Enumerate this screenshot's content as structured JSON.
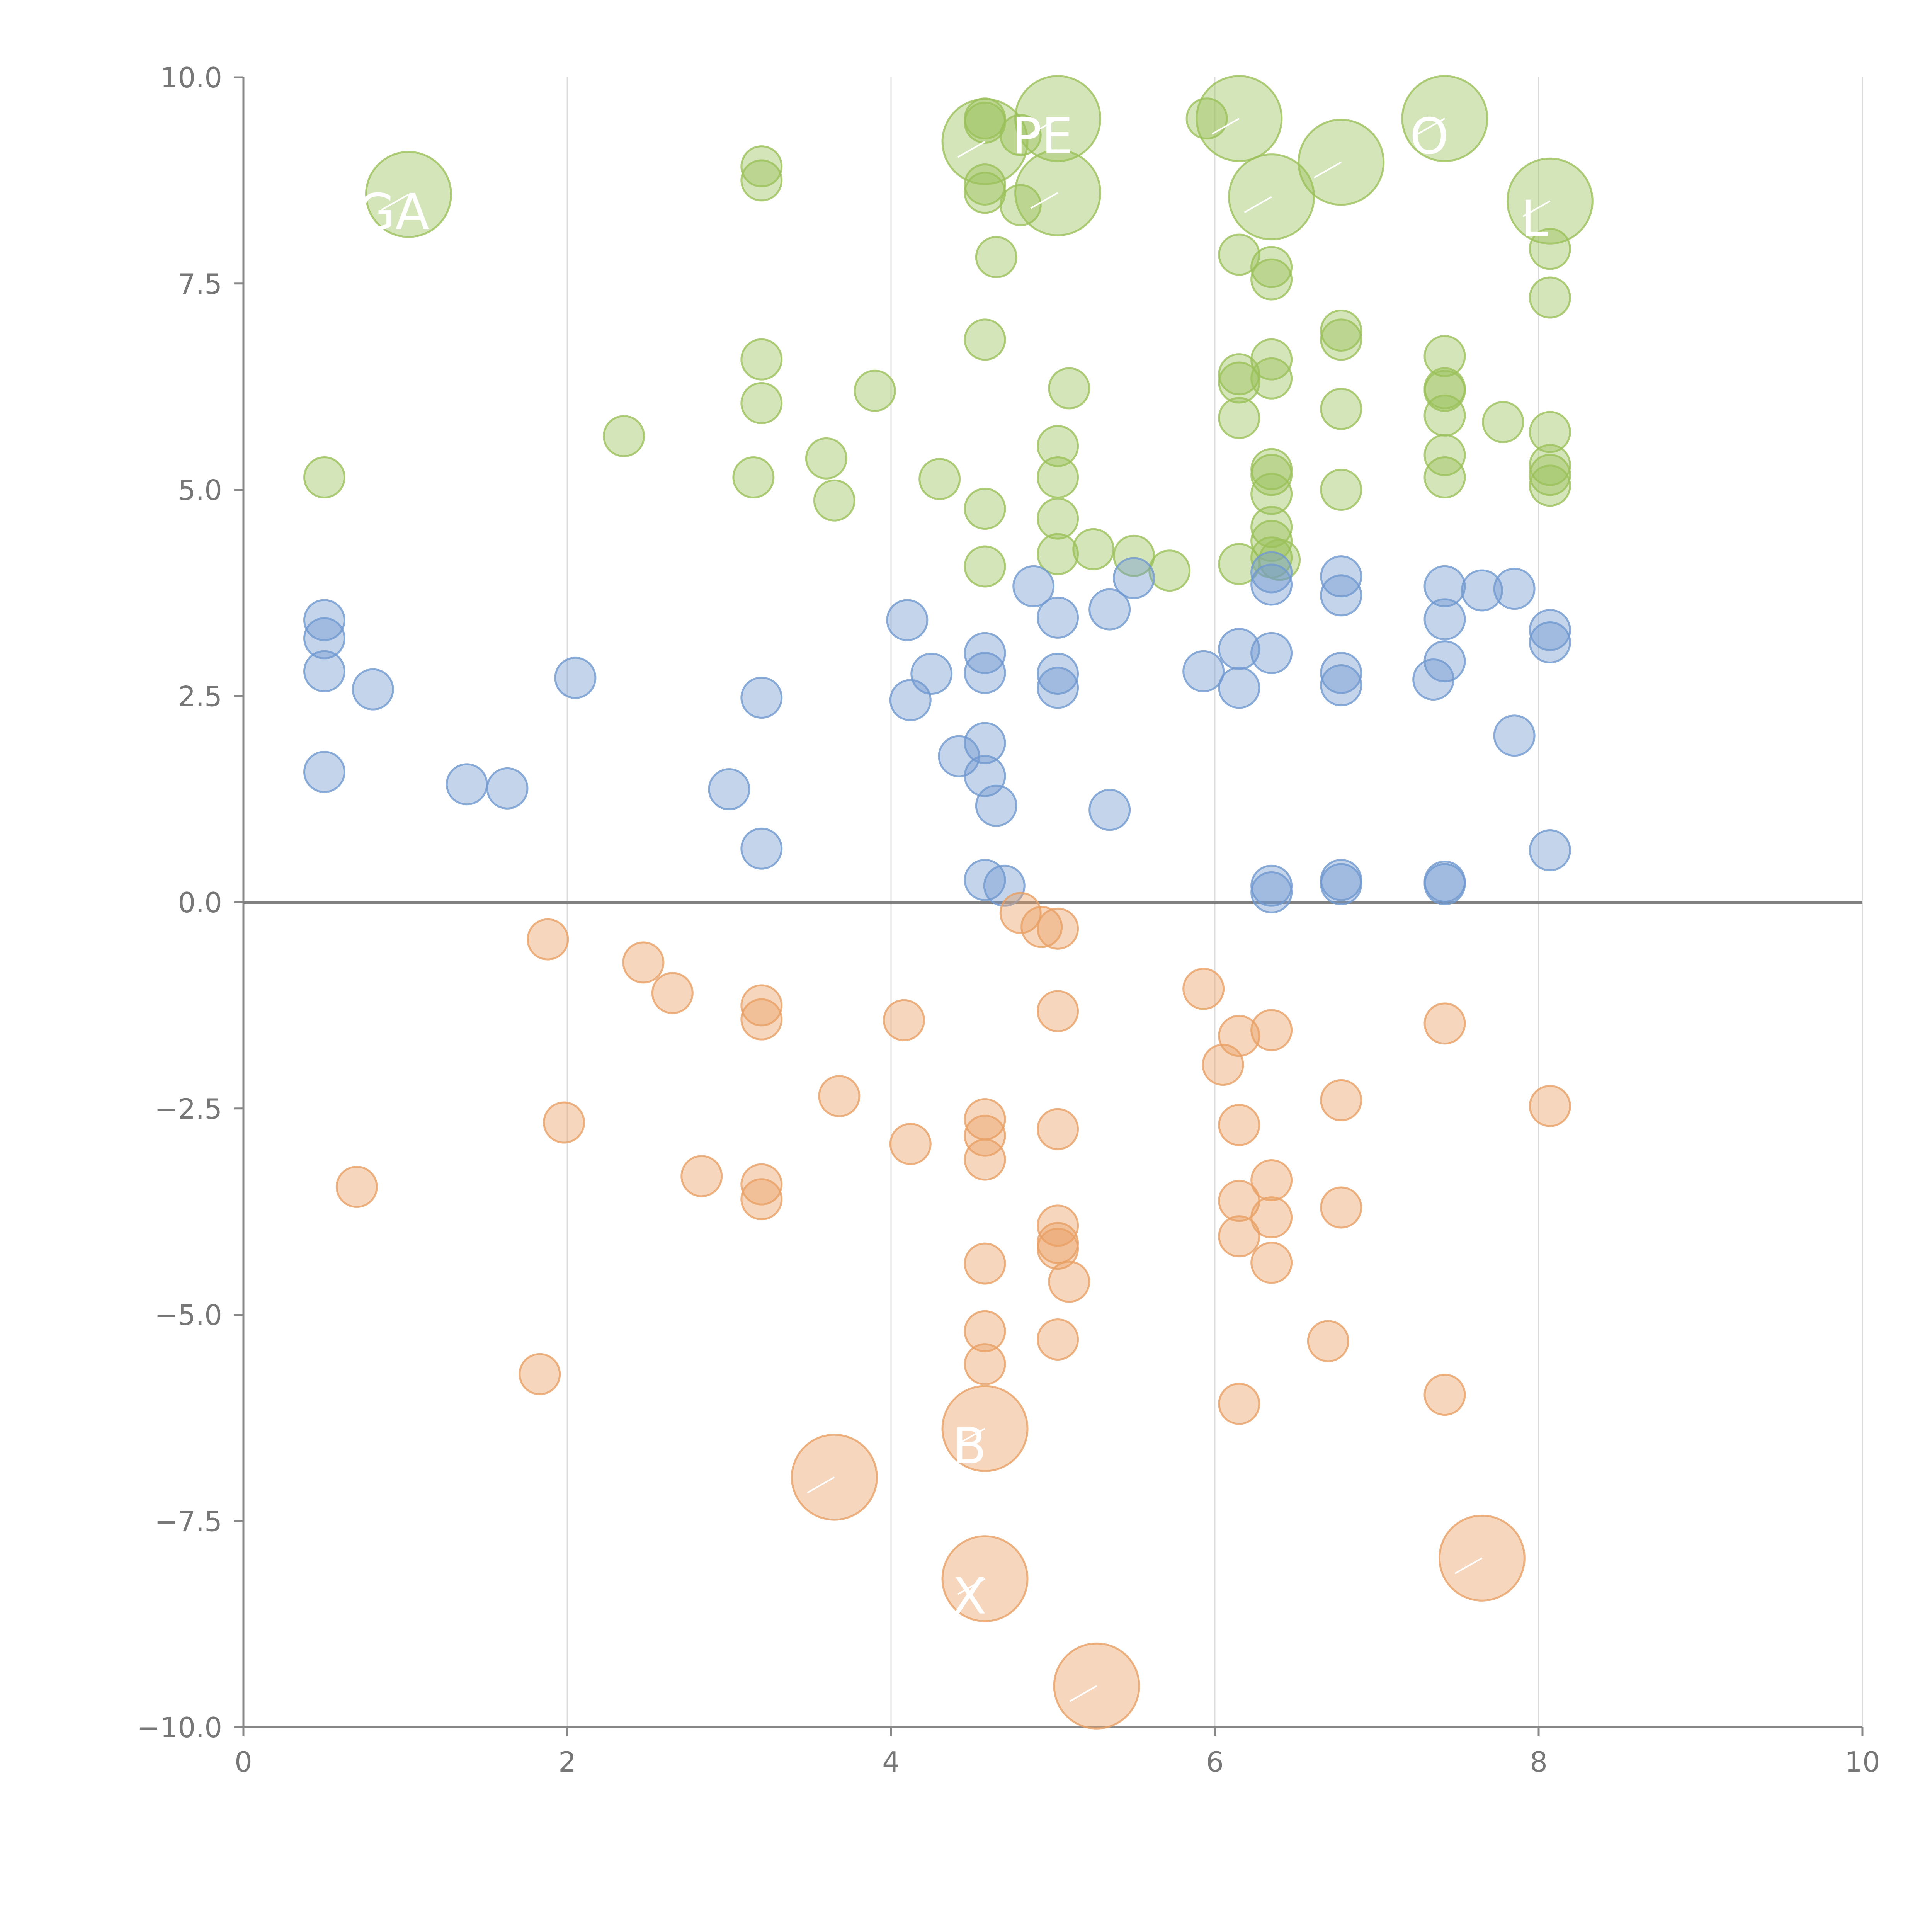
{
  "chart_data": {
    "type": "scatter",
    "title": "",
    "xlabel": "",
    "ylabel": "",
    "xlim": [
      0,
      10
    ],
    "ylim": [
      -10,
      10
    ],
    "grid": "vertical",
    "x_ticks": [
      0,
      2,
      4,
      6,
      8,
      10
    ],
    "x_tick_labels": [
      "0",
      "2",
      "4",
      "6",
      "8",
      "10"
    ],
    "y_ticks": [
      -10,
      -7.5,
      -5,
      -2.5,
      0,
      2.5,
      5,
      7.5,
      10
    ],
    "y_tick_labels": [
      "−10.0",
      "−7.5",
      "−5.0",
      "−2.5",
      "0.0",
      "2.5",
      "5.0",
      "7.5",
      "10.0"
    ],
    "series": [
      {
        "name": "green",
        "color": "#9bc15a",
        "points": [
          {
            "x": 0.5,
            "y": 5.15
          },
          {
            "x": 2.35,
            "y": 5.65
          },
          {
            "x": 3.15,
            "y": 5.15
          },
          {
            "x": 3.2,
            "y": 6.05
          },
          {
            "x": 3.2,
            "y": 6.58
          },
          {
            "x": 3.2,
            "y": 8.75
          },
          {
            "x": 3.2,
            "y": 8.92
          },
          {
            "x": 3.6,
            "y": 5.38
          },
          {
            "x": 3.65,
            "y": 4.87
          },
          {
            "x": 3.9,
            "y": 6.2
          },
          {
            "x": 4.3,
            "y": 5.13
          },
          {
            "x": 4.58,
            "y": 4.77
          },
          {
            "x": 4.58,
            "y": 4.07
          },
          {
            "x": 4.58,
            "y": 6.82
          },
          {
            "x": 4.58,
            "y": 8.6
          },
          {
            "x": 4.58,
            "y": 8.7
          },
          {
            "x": 4.58,
            "y": 9.5
          },
          {
            "x": 4.58,
            "y": 9.45
          },
          {
            "x": 4.65,
            "y": 7.82
          },
          {
            "x": 4.8,
            "y": 8.45
          },
          {
            "x": 4.8,
            "y": 9.3
          },
          {
            "x": 5.03,
            "y": 5.53
          },
          {
            "x": 5.03,
            "y": 5.15
          },
          {
            "x": 5.03,
            "y": 4.65
          },
          {
            "x": 5.03,
            "y": 4.22
          },
          {
            "x": 5.1,
            "y": 6.23
          },
          {
            "x": 5.25,
            "y": 4.28
          },
          {
            "x": 5.5,
            "y": 4.2
          },
          {
            "x": 5.72,
            "y": 4.02
          },
          {
            "x": 5.95,
            "y": 9.5
          },
          {
            "x": 6.15,
            "y": 7.85
          },
          {
            "x": 6.15,
            "y": 6.4
          },
          {
            "x": 6.15,
            "y": 6.3
          },
          {
            "x": 6.15,
            "y": 5.87
          },
          {
            "x": 6.15,
            "y": 4.1
          },
          {
            "x": 6.35,
            "y": 7.7
          },
          {
            "x": 6.35,
            "y": 7.55
          },
          {
            "x": 6.35,
            "y": 6.58
          },
          {
            "x": 6.35,
            "y": 6.35
          },
          {
            "x": 6.35,
            "y": 5.25
          },
          {
            "x": 6.35,
            "y": 5.18
          },
          {
            "x": 6.35,
            "y": 4.95
          },
          {
            "x": 6.35,
            "y": 4.55
          },
          {
            "x": 6.35,
            "y": 4.38
          },
          {
            "x": 6.35,
            "y": 4.18
          },
          {
            "x": 6.4,
            "y": 4.15
          },
          {
            "x": 6.78,
            "y": 6.93
          },
          {
            "x": 6.78,
            "y": 6.82
          },
          {
            "x": 6.78,
            "y": 5.98
          },
          {
            "x": 6.78,
            "y": 5.0
          },
          {
            "x": 7.42,
            "y": 6.62
          },
          {
            "x": 7.42,
            "y": 6.23
          },
          {
            "x": 7.42,
            "y": 6.2
          },
          {
            "x": 7.42,
            "y": 5.9
          },
          {
            "x": 7.42,
            "y": 5.42
          },
          {
            "x": 7.42,
            "y": 5.15
          },
          {
            "x": 7.78,
            "y": 5.82
          },
          {
            "x": 8.07,
            "y": 7.92
          },
          {
            "x": 8.07,
            "y": 7.33
          },
          {
            "x": 8.07,
            "y": 5.7
          },
          {
            "x": 8.07,
            "y": 5.3
          },
          {
            "x": 8.07,
            "y": 5.18
          },
          {
            "x": 8.07,
            "y": 5.05
          }
        ]
      },
      {
        "name": "blue",
        "color": "#7099cf",
        "points": [
          {
            "x": 0.5,
            "y": 3.42
          },
          {
            "x": 0.5,
            "y": 3.2
          },
          {
            "x": 0.5,
            "y": 2.8
          },
          {
            "x": 0.5,
            "y": 1.58
          },
          {
            "x": 0.8,
            "y": 2.58
          },
          {
            "x": 1.38,
            "y": 1.43
          },
          {
            "x": 1.63,
            "y": 1.38
          },
          {
            "x": 2.05,
            "y": 2.72
          },
          {
            "x": 3.0,
            "y": 1.37
          },
          {
            "x": 3.2,
            "y": 2.48
          },
          {
            "x": 3.2,
            "y": 0.65
          },
          {
            "x": 4.1,
            "y": 3.42
          },
          {
            "x": 4.12,
            "y": 2.45
          },
          {
            "x": 4.25,
            "y": 2.77
          },
          {
            "x": 4.42,
            "y": 1.77
          },
          {
            "x": 4.58,
            "y": 3.02
          },
          {
            "x": 4.58,
            "y": 2.78
          },
          {
            "x": 4.58,
            "y": 1.93
          },
          {
            "x": 4.58,
            "y": 1.53
          },
          {
            "x": 4.58,
            "y": 0.27
          },
          {
            "x": 4.65,
            "y": 1.17
          },
          {
            "x": 4.7,
            "y": 0.2
          },
          {
            "x": 4.88,
            "y": 3.83
          },
          {
            "x": 5.03,
            "y": 3.45
          },
          {
            "x": 5.03,
            "y": 2.77
          },
          {
            "x": 5.03,
            "y": 2.6
          },
          {
            "x": 5.35,
            "y": 3.55
          },
          {
            "x": 5.35,
            "y": 1.12
          },
          {
            "x": 5.5,
            "y": 3.93
          },
          {
            "x": 5.93,
            "y": 2.8
          },
          {
            "x": 6.15,
            "y": 3.07
          },
          {
            "x": 6.15,
            "y": 2.6
          },
          {
            "x": 6.35,
            "y": 4.0
          },
          {
            "x": 6.35,
            "y": 3.85
          },
          {
            "x": 6.35,
            "y": 3.02
          },
          {
            "x": 6.35,
            "y": 0.2
          },
          {
            "x": 6.35,
            "y": 0.12
          },
          {
            "x": 6.78,
            "y": 3.95
          },
          {
            "x": 6.78,
            "y": 3.72
          },
          {
            "x": 6.78,
            "y": 2.78
          },
          {
            "x": 6.78,
            "y": 2.63
          },
          {
            "x": 6.78,
            "y": 0.27
          },
          {
            "x": 6.78,
            "y": 0.22
          },
          {
            "x": 7.35,
            "y": 2.7
          },
          {
            "x": 7.42,
            "y": 3.83
          },
          {
            "x": 7.42,
            "y": 3.43
          },
          {
            "x": 7.42,
            "y": 2.92
          },
          {
            "x": 7.42,
            "y": 0.25
          },
          {
            "x": 7.42,
            "y": 0.22
          },
          {
            "x": 7.65,
            "y": 3.78
          },
          {
            "x": 7.85,
            "y": 3.8
          },
          {
            "x": 7.85,
            "y": 2.02
          },
          {
            "x": 8.07,
            "y": 3.3
          },
          {
            "x": 8.07,
            "y": 3.15
          },
          {
            "x": 8.07,
            "y": 0.63
          }
        ]
      },
      {
        "name": "orange",
        "color": "#e9a065",
        "points": [
          {
            "x": 0.7,
            "y": -3.45
          },
          {
            "x": 1.83,
            "y": -5.72
          },
          {
            "x": 1.88,
            "y": -0.45
          },
          {
            "x": 1.98,
            "y": -2.67
          },
          {
            "x": 2.47,
            "y": -0.73
          },
          {
            "x": 2.65,
            "y": -1.1
          },
          {
            "x": 2.83,
            "y": -3.32
          },
          {
            "x": 3.2,
            "y": -1.25
          },
          {
            "x": 3.2,
            "y": -1.42
          },
          {
            "x": 3.2,
            "y": -3.42
          },
          {
            "x": 3.2,
            "y": -3.6
          },
          {
            "x": 3.68,
            "y": -2.35
          },
          {
            "x": 4.08,
            "y": -1.43
          },
          {
            "x": 4.12,
            "y": -2.93
          },
          {
            "x": 4.58,
            "y": -2.63
          },
          {
            "x": 4.58,
            "y": -2.83
          },
          {
            "x": 4.58,
            "y": -3.12
          },
          {
            "x": 4.58,
            "y": -4.38
          },
          {
            "x": 4.58,
            "y": -5.2
          },
          {
            "x": 4.58,
            "y": -5.6
          },
          {
            "x": 4.8,
            "y": -0.13
          },
          {
            "x": 4.93,
            "y": -0.3
          },
          {
            "x": 5.03,
            "y": -0.32
          },
          {
            "x": 5.03,
            "y": -1.32
          },
          {
            "x": 5.03,
            "y": -2.75
          },
          {
            "x": 5.03,
            "y": -3.92
          },
          {
            "x": 5.03,
            "y": -4.13
          },
          {
            "x": 5.03,
            "y": -4.2
          },
          {
            "x": 5.03,
            "y": -5.3
          },
          {
            "x": 5.1,
            "y": -4.6
          },
          {
            "x": 5.93,
            "y": -1.05
          },
          {
            "x": 6.05,
            "y": -1.97
          },
          {
            "x": 6.15,
            "y": -1.62
          },
          {
            "x": 6.15,
            "y": -2.7
          },
          {
            "x": 6.15,
            "y": -3.62
          },
          {
            "x": 6.15,
            "y": -4.05
          },
          {
            "x": 6.15,
            "y": -6.08
          },
          {
            "x": 6.35,
            "y": -1.55
          },
          {
            "x": 6.35,
            "y": -3.37
          },
          {
            "x": 6.35,
            "y": -3.82
          },
          {
            "x": 6.35,
            "y": -4.37
          },
          {
            "x": 6.7,
            "y": -5.32
          },
          {
            "x": 6.78,
            "y": -2.4
          },
          {
            "x": 6.78,
            "y": -3.7
          },
          {
            "x": 7.42,
            "y": -1.47
          },
          {
            "x": 7.42,
            "y": -5.97
          },
          {
            "x": 8.07,
            "y": -2.47
          }
        ]
      }
    ],
    "annotations": [
      {
        "series": "green",
        "x": 1.02,
        "y": 8.58,
        "size": "large",
        "label": "GA"
      },
      {
        "series": "green",
        "x": 4.58,
        "y": 9.22,
        "size": "large",
        "label": ""
      },
      {
        "series": "green",
        "x": 5.03,
        "y": 9.5,
        "size": "large",
        "label": "PE"
      },
      {
        "series": "green",
        "x": 5.03,
        "y": 8.6,
        "size": "large",
        "label": ""
      },
      {
        "series": "green",
        "x": 6.15,
        "y": 9.5,
        "size": "large",
        "label": ""
      },
      {
        "series": "green",
        "x": 6.35,
        "y": 8.55,
        "size": "large",
        "label": ""
      },
      {
        "series": "green",
        "x": 6.78,
        "y": 8.97,
        "size": "large",
        "label": ""
      },
      {
        "series": "green",
        "x": 7.42,
        "y": 9.5,
        "size": "large",
        "label": "O"
      },
      {
        "series": "green",
        "x": 8.07,
        "y": 8.5,
        "size": "large",
        "label": "L"
      },
      {
        "series": "orange",
        "x": 3.65,
        "y": -6.97,
        "size": "large",
        "label": ""
      },
      {
        "series": "orange",
        "x": 4.58,
        "y": -6.38,
        "size": "large",
        "label": "B"
      },
      {
        "series": "orange",
        "x": 4.58,
        "y": -8.2,
        "size": "large",
        "label": "X"
      },
      {
        "series": "orange",
        "x": 5.27,
        "y": -9.5,
        "size": "large",
        "label": ""
      },
      {
        "series": "orange",
        "x": 7.65,
        "y": -7.95,
        "size": "large",
        "label": ""
      }
    ]
  }
}
